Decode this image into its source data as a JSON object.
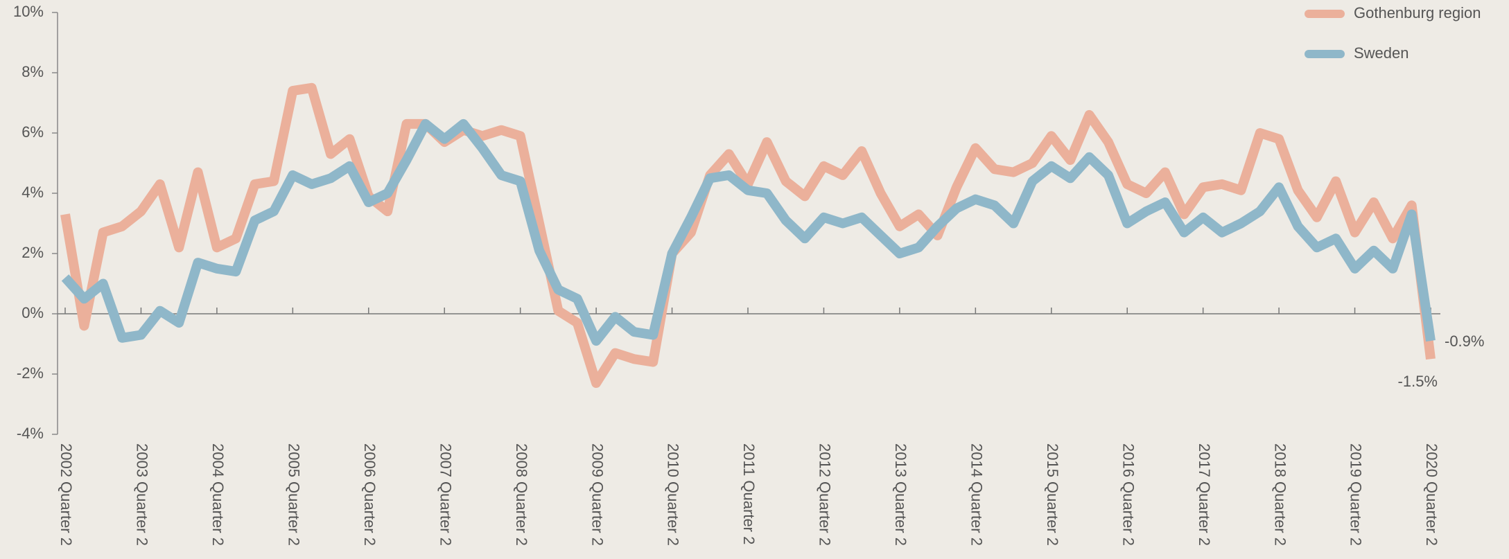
{
  "chart_data": {
    "type": "line",
    "categories": [
      "2002 Quarter 2",
      null,
      null,
      null,
      "2003 Quarter 2",
      null,
      null,
      null,
      "2004 Quarter 2",
      null,
      null,
      null,
      "2005 Quarter 2",
      null,
      null,
      null,
      "2006 Quarter 2",
      null,
      null,
      null,
      "2007 Quarter 2",
      null,
      null,
      null,
      "2008 Quarter 2",
      null,
      null,
      null,
      "2009 Quarter 2",
      null,
      null,
      null,
      "2010 Quarter 2",
      null,
      null,
      null,
      "2011 Quarter 2",
      null,
      null,
      null,
      "2012 Quarter 2",
      null,
      null,
      null,
      "2013 Quarter 2",
      null,
      null,
      null,
      "2014 Quarter 2",
      null,
      null,
      null,
      "2015 Quarter 2",
      null,
      null,
      null,
      "2016 Quarter 2",
      null,
      null,
      null,
      "2017 Quarter 2",
      null,
      null,
      null,
      "2018 Quarter 2",
      null,
      null,
      null,
      "2019 Quarter 2",
      null,
      null,
      null,
      "2020 Quarter 2"
    ],
    "series": [
      {
        "name": "Gothenburg region",
        "color": "#ebb09b",
        "values": [
          3.3,
          -0.4,
          2.7,
          2.9,
          3.4,
          4.3,
          2.2,
          4.7,
          2.2,
          2.5,
          4.3,
          4.4,
          7.4,
          7.5,
          5.3,
          5.8,
          3.9,
          3.4,
          6.3,
          6.3,
          5.7,
          6.1,
          5.9,
          6.1,
          5.9,
          3.0,
          0.1,
          -0.3,
          -2.3,
          -1.3,
          -1.5,
          -1.6,
          2.0,
          2.7,
          4.6,
          5.3,
          4.3,
          5.7,
          4.4,
          3.9,
          4.9,
          4.6,
          5.4,
          4.0,
          2.9,
          3.3,
          2.6,
          4.2,
          5.5,
          4.8,
          4.7,
          5.0,
          5.9,
          5.1,
          6.6,
          5.7,
          4.3,
          4.0,
          4.7,
          3.3,
          4.2,
          4.3,
          4.1,
          6.0,
          5.8,
          4.1,
          3.2,
          4.4,
          2.7,
          3.7,
          2.5,
          3.6,
          -1.5
        ],
        "value_labels": [
          null,
          null,
          null,
          null,
          null,
          null,
          null,
          null,
          null,
          null,
          null,
          null,
          null,
          null,
          null,
          null,
          null,
          null,
          null,
          null,
          null,
          null,
          null,
          null,
          null,
          null,
          null,
          null,
          null,
          null,
          null,
          null,
          null,
          null,
          null,
          null,
          null,
          null,
          null,
          null,
          null,
          null,
          null,
          null,
          null,
          null,
          null,
          null,
          null,
          null,
          null,
          null,
          null,
          null,
          null,
          null,
          null,
          null,
          null,
          null,
          null,
          null,
          null,
          null,
          null,
          null,
          null,
          null,
          null,
          null,
          null,
          null,
          "-1.5%"
        ]
      },
      {
        "name": "Sweden",
        "color": "#8fb7c9",
        "values": [
          1.2,
          0.5,
          1.0,
          -0.8,
          -0.7,
          0.1,
          -0.3,
          1.7,
          1.5,
          1.4,
          3.1,
          3.4,
          4.6,
          4.3,
          4.5,
          4.9,
          3.7,
          4.0,
          5.1,
          6.3,
          5.8,
          6.3,
          5.5,
          4.6,
          4.4,
          2.1,
          0.8,
          0.5,
          -0.9,
          -0.1,
          -0.6,
          -0.7,
          2.0,
          3.2,
          4.5,
          4.6,
          4.1,
          4.0,
          3.1,
          2.5,
          3.2,
          3.0,
          3.2,
          2.6,
          2.0,
          2.2,
          2.9,
          3.5,
          3.8,
          3.6,
          3.0,
          4.4,
          4.9,
          4.5,
          5.2,
          4.6,
          3.0,
          3.4,
          3.7,
          2.7,
          3.2,
          2.7,
          3.0,
          3.4,
          4.2,
          2.9,
          2.2,
          2.5,
          1.5,
          2.1,
          1.5,
          3.3,
          -0.9
        ],
        "value_labels": [
          null,
          null,
          null,
          null,
          null,
          null,
          null,
          null,
          null,
          null,
          null,
          null,
          null,
          null,
          null,
          null,
          null,
          null,
          null,
          null,
          null,
          null,
          null,
          null,
          null,
          null,
          null,
          null,
          null,
          null,
          null,
          null,
          null,
          null,
          null,
          null,
          null,
          null,
          null,
          null,
          null,
          null,
          null,
          null,
          null,
          null,
          null,
          null,
          null,
          null,
          null,
          null,
          null,
          null,
          null,
          null,
          null,
          null,
          null,
          null,
          null,
          null,
          null,
          null,
          null,
          null,
          null,
          null,
          null,
          null,
          null,
          null,
          "-0.9%"
        ]
      }
    ],
    "ylim": [
      -4,
      10
    ],
    "yticks": [
      {
        "value": -4,
        "label": "-4%"
      },
      {
        "value": -2,
        "label": "-2%"
      },
      {
        "value": 0,
        "label": "0%"
      },
      {
        "value": 2,
        "label": "2%"
      },
      {
        "value": 4,
        "label": "4%"
      },
      {
        "value": 6,
        "label": "6%"
      },
      {
        "value": 8,
        "label": "8%"
      },
      {
        "value": 10,
        "label": "10%"
      }
    ],
    "legend": "top-right"
  }
}
